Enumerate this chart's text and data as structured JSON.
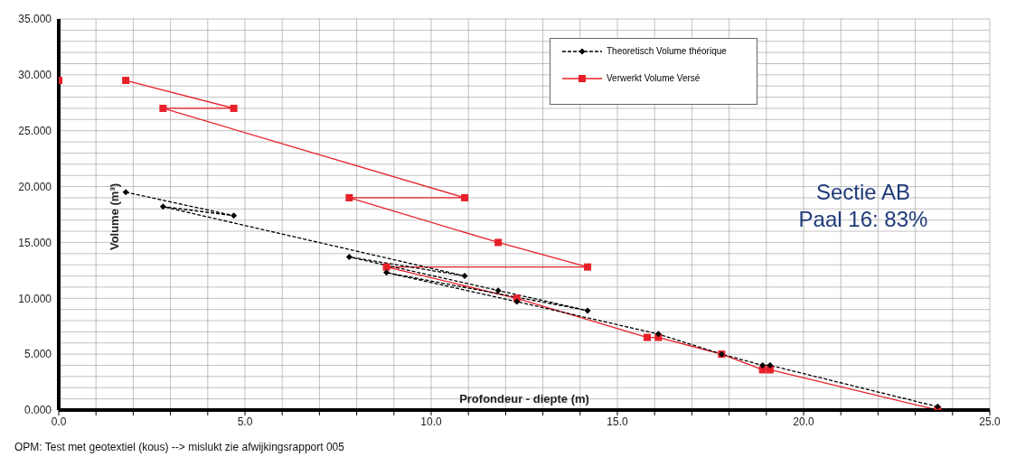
{
  "chart_data": {
    "type": "line",
    "xlabel": "Profondeur - diepte (m)",
    "ylabel": "Volume (m³)",
    "annotations": [
      "Sectie AB",
      "Paal 16: 83%",
      "OPM: Test met geotextiel (kous) --> mislukt zie afwijkingsrapport 005"
    ],
    "xlim": [
      0,
      25
    ],
    "xticks": [
      {
        "value": 0,
        "label": "0.0"
      },
      {
        "value": 1,
        "label": null
      },
      {
        "value": 2,
        "label": null
      },
      {
        "value": 3,
        "label": null
      },
      {
        "value": 4,
        "label": null
      },
      {
        "value": 5,
        "label": "5.0"
      },
      {
        "value": 6,
        "label": null
      },
      {
        "value": 7,
        "label": null
      },
      {
        "value": 8,
        "label": null
      },
      {
        "value": 9,
        "label": null
      },
      {
        "value": 10,
        "label": "10.0"
      },
      {
        "value": 11,
        "label": null
      },
      {
        "value": 12,
        "label": null
      },
      {
        "value": 13,
        "label": null
      },
      {
        "value": 14,
        "label": null
      },
      {
        "value": 15,
        "label": "15.0"
      },
      {
        "value": 16,
        "label": null
      },
      {
        "value": 17,
        "label": null
      },
      {
        "value": 18,
        "label": null
      },
      {
        "value": 19,
        "label": null
      },
      {
        "value": 20,
        "label": "20.0"
      },
      {
        "value": 21,
        "label": null
      },
      {
        "value": 22,
        "label": null
      },
      {
        "value": 23,
        "label": null
      },
      {
        "value": 24,
        "label": null
      },
      {
        "value": 25,
        "label": "25.0"
      }
    ],
    "ylim": [
      0,
      35
    ],
    "yticks": [
      {
        "value": 0,
        "label": "0.000"
      },
      {
        "value": 1,
        "label": null
      },
      {
        "value": 2,
        "label": null
      },
      {
        "value": 3,
        "label": null
      },
      {
        "value": 4,
        "label": null
      },
      {
        "value": 5,
        "label": "5.000"
      },
      {
        "value": 6,
        "label": null
      },
      {
        "value": 7,
        "label": null
      },
      {
        "value": 8,
        "label": null
      },
      {
        "value": 9,
        "label": null
      },
      {
        "value": 10,
        "label": "10.000"
      },
      {
        "value": 11,
        "label": null
      },
      {
        "value": 12,
        "label": null
      },
      {
        "value": 13,
        "label": null
      },
      {
        "value": 14,
        "label": null
      },
      {
        "value": 15,
        "label": "15.000"
      },
      {
        "value": 16,
        "label": null
      },
      {
        "value": 17,
        "label": null
      },
      {
        "value": 18,
        "label": null
      },
      {
        "value": 19,
        "label": null
      },
      {
        "value": 20,
        "label": "20.000"
      },
      {
        "value": 21,
        "label": null
      },
      {
        "value": 22,
        "label": null
      },
      {
        "value": 23,
        "label": null
      },
      {
        "value": 24,
        "label": null
      },
      {
        "value": 25,
        "label": "25.000"
      },
      {
        "value": 26,
        "label": null
      },
      {
        "value": 27,
        "label": null
      },
      {
        "value": 28,
        "label": null
      },
      {
        "value": 29,
        "label": null
      },
      {
        "value": 30,
        "label": "30.000"
      },
      {
        "value": 31,
        "label": null
      },
      {
        "value": 32,
        "label": null
      },
      {
        "value": 33,
        "label": null
      },
      {
        "value": 34,
        "label": null
      },
      {
        "value": 35,
        "label": "35.000"
      }
    ],
    "grid": true,
    "legend": "top right",
    "series": [
      {
        "name": "Theoretisch Volume théorique",
        "color": "#000000",
        "marker": "diamond",
        "line_style": "dashed",
        "x": [
          1.8,
          4.7,
          2.8,
          10.9,
          7.8,
          11.8,
          14.2,
          8.8,
          12.3,
          16.1,
          17.8,
          18.9,
          19.1,
          23.6
        ],
        "values": [
          19.5,
          17.4,
          18.2,
          12.0,
          13.7,
          10.7,
          8.9,
          12.3,
          9.7,
          6.8,
          5.0,
          4.0,
          4.0,
          0.3
        ]
      },
      {
        "name": "Verwerkt Volume Versé",
        "color": "#e8202a",
        "marker": "square",
        "line_style": "solid",
        "x": [
          0,
          null,
          1.8,
          4.7,
          2.8,
          10.9,
          7.8,
          11.8,
          14.2,
          8.8,
          12.3,
          15.8,
          16.1,
          17.8,
          18.9,
          19.1,
          23.6
        ],
        "values": [
          29.5,
          null,
          29.5,
          27.0,
          27.0,
          19.0,
          19.0,
          15.0,
          12.8,
          12.8,
          10.0,
          6.5,
          6.5,
          5.0,
          3.6,
          3.6,
          0.0
        ]
      }
    ]
  }
}
